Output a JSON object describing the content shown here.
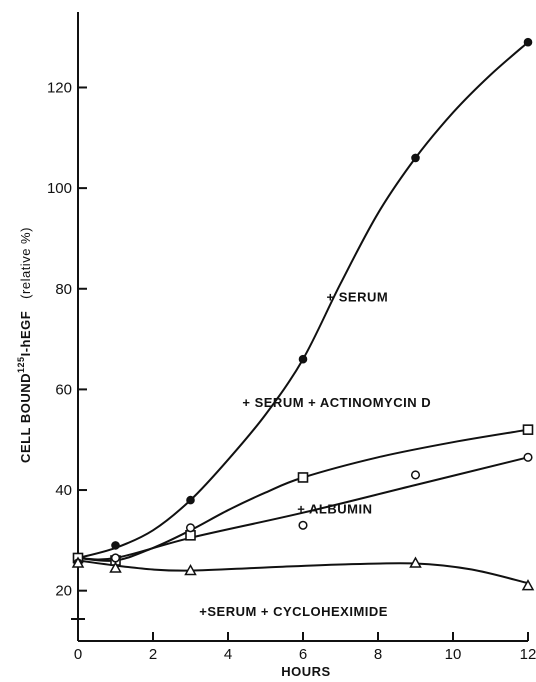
{
  "chart_data": {
    "type": "line",
    "xlabel": "HOURS",
    "ylabel_main": "CELL BOUND",
    "ylabel_sup": "125",
    "ylabel_rest": "I-hEGF",
    "ylabel_paren": "(relative %)",
    "xlim": [
      0,
      12
    ],
    "ylim": [
      10,
      135
    ],
    "x_ticks": [
      0,
      2,
      4,
      6,
      8,
      10,
      12
    ],
    "y_ticks": [
      20,
      40,
      60,
      80,
      100,
      120
    ],
    "grid": false,
    "series": [
      {
        "name": "+ SERUM",
        "marker": "filled-circle",
        "points": [
          [
            0,
            26.5
          ],
          [
            1,
            29
          ],
          [
            3,
            38
          ],
          [
            6,
            66
          ],
          [
            9,
            106
          ],
          [
            12,
            129
          ]
        ],
        "curve": [
          [
            0,
            26.5
          ],
          [
            1,
            28.5
          ],
          [
            2,
            32
          ],
          [
            3,
            38
          ],
          [
            4,
            46
          ],
          [
            5,
            55
          ],
          [
            6,
            66
          ],
          [
            7,
            81
          ],
          [
            8,
            95
          ],
          [
            9,
            106
          ],
          [
            10,
            115
          ],
          [
            11,
            122.5
          ],
          [
            12,
            129
          ]
        ]
      },
      {
        "name": "+ SERUM + ACTINOMYCIN D",
        "marker": "open-square",
        "points": [
          [
            0,
            26.5
          ],
          [
            1,
            26
          ],
          [
            3,
            31
          ],
          [
            6,
            42.5
          ],
          [
            12,
            52
          ]
        ],
        "curve": [
          [
            0,
            26.5
          ],
          [
            1,
            26
          ],
          [
            2,
            28.5
          ],
          [
            3,
            32
          ],
          [
            4,
            36
          ],
          [
            5,
            39.5
          ],
          [
            6,
            42.5
          ],
          [
            8,
            46.5
          ],
          [
            10,
            49.5
          ],
          [
            12,
            52
          ]
        ]
      },
      {
        "name": "+ ALBUMIN",
        "marker": "open-circle",
        "points": [
          [
            0,
            25.5
          ],
          [
            1,
            26.5
          ],
          [
            3,
            32.5
          ],
          [
            6,
            33
          ],
          [
            9,
            43
          ],
          [
            12,
            46.5
          ]
        ],
        "curve": [
          [
            0,
            26.5
          ],
          [
            1,
            26.5
          ],
          [
            3,
            30.5
          ],
          [
            6,
            35.5
          ],
          [
            9,
            41
          ],
          [
            12,
            46.5
          ]
        ]
      },
      {
        "name": "+SERUM + CYCLOHEXIMIDE",
        "marker": "open-triangle",
        "points": [
          [
            0,
            25.5
          ],
          [
            1,
            24.5
          ],
          [
            3,
            24
          ],
          [
            9,
            25.5
          ],
          [
            12,
            21
          ]
        ],
        "curve": [
          [
            0,
            26
          ],
          [
            1,
            25
          ],
          [
            2,
            24.2
          ],
          [
            3,
            24
          ],
          [
            5,
            24.6
          ],
          [
            7,
            25.2
          ],
          [
            9,
            25.4
          ],
          [
            10.5,
            24.2
          ],
          [
            12,
            21.5
          ]
        ]
      }
    ],
    "annotations": [
      {
        "text": "+ SERUM",
        "x": 7.45,
        "y": 77.5
      },
      {
        "text": "+ SERUM + ACTINOMYCIN D",
        "x": 6.9,
        "y": 56.5
      },
      {
        "text": "+ ALBUMIN",
        "x": 6.85,
        "y": 35.3
      },
      {
        "text": "+SERUM + CYCLOHEXIMIDE",
        "x": 5.75,
        "y": 15
      }
    ]
  }
}
